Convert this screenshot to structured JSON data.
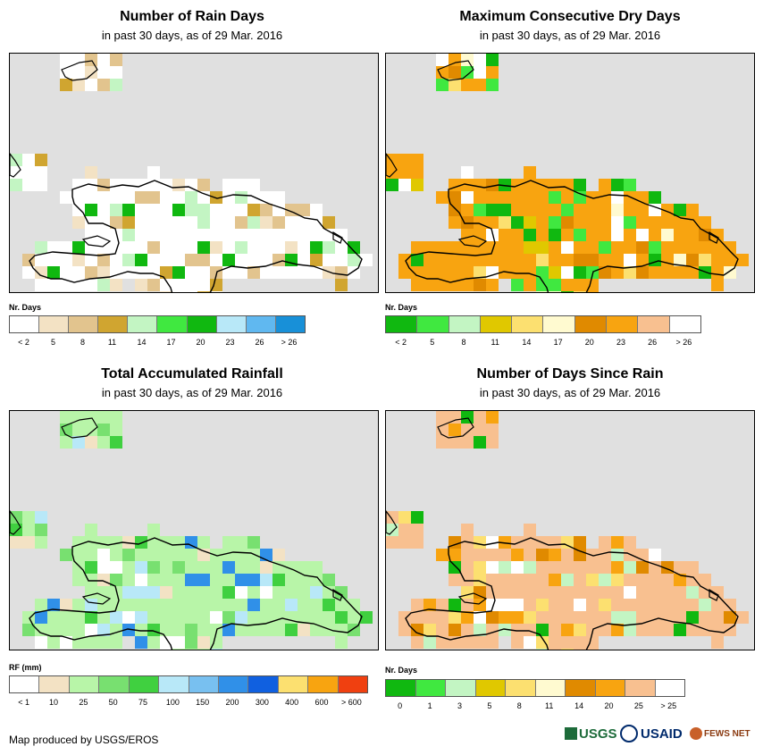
{
  "panels": [
    {
      "id": "rain-days",
      "title": "Number of Rain Days",
      "subtitle": "in past 30 days, as of 29 Mar. 2016",
      "legend_title": "Nr. Days",
      "legend_colors": [
        "#ffffff",
        "#f3e2c4",
        "#e2c48e",
        "#d0a530",
        "#c3f5c3",
        "#40e840",
        "#10b810",
        "#b8e8f8",
        "#60b8f0",
        "#1890d8"
      ],
      "legend_labels": [
        "< 2",
        "5",
        "8",
        "11",
        "14",
        "17",
        "20",
        "23",
        "26",
        "> 26"
      ],
      "base_color": "#ffffff",
      "accent_colors": [
        "#f3e2c4",
        "#e2c48e",
        "#d0a530",
        "#10b810",
        "#c3f5c3"
      ]
    },
    {
      "id": "dry-days",
      "title": "Maximum Consecutive Dry Days",
      "subtitle": "in past 30 days, as of 29 Mar. 2016",
      "legend_title": "Nr. Days",
      "legend_colors": [
        "#10b810",
        "#40e840",
        "#c3f5c3",
        "#e0c800",
        "#fce070",
        "#fffad0",
        "#e08a00",
        "#f8a410",
        "#f8c090",
        "#ffffff"
      ],
      "legend_labels": [
        "< 2",
        "5",
        "8",
        "11",
        "14",
        "17",
        "20",
        "23",
        "26",
        "> 26"
      ],
      "base_color": "#f8a410",
      "accent_colors": [
        "#fce070",
        "#fffad0",
        "#e08a00",
        "#10b810",
        "#40e840",
        "#ffffff",
        "#e0c800"
      ]
    },
    {
      "id": "total-rainfall",
      "title": "Total Accumulated Rainfall",
      "subtitle": "in past 30 days, as of 29 Mar. 2016",
      "legend_title": "RF (mm)",
      "legend_colors": [
        "#ffffff",
        "#f3e2c4",
        "#b8f5a8",
        "#78e070",
        "#40d040",
        "#b8e8f8",
        "#78c0f0",
        "#3090e8",
        "#1060e0",
        "#fce070",
        "#f8a410",
        "#f04010"
      ],
      "legend_labels": [
        "< 1",
        "10",
        "25",
        "50",
        "75",
        "100",
        "150",
        "200",
        "300",
        "400",
        "600",
        "> 600"
      ],
      "base_color": "#b8f5a8",
      "accent_colors": [
        "#ffffff",
        "#78e070",
        "#40d040",
        "#f3e2c4",
        "#3090e8",
        "#b8e8f8"
      ]
    },
    {
      "id": "days-since-rain",
      "title": "Number of Days Since Rain",
      "subtitle": "in past 30 days, as of 29 Mar. 2016",
      "legend_title": "Nr. Days",
      "legend_colors": [
        "#10b810",
        "#40e840",
        "#c3f5c3",
        "#e0c800",
        "#fce070",
        "#fffad0",
        "#e08a00",
        "#f8a410",
        "#f8c090",
        "#ffffff"
      ],
      "legend_labels": [
        "0",
        "1",
        "3",
        "5",
        "8",
        "11",
        "14",
        "20",
        "25",
        "> 25"
      ],
      "base_color": "#f8c090",
      "accent_colors": [
        "#e08a00",
        "#ffffff",
        "#10b810",
        "#f8a410",
        "#c3f5c3",
        "#fce070"
      ]
    }
  ],
  "footer": {
    "credit": "Map produced by USGS/EROS"
  },
  "logos": {
    "usgs": "USGS",
    "usaid": "USAID",
    "fewsnet": "FEWS NET"
  }
}
